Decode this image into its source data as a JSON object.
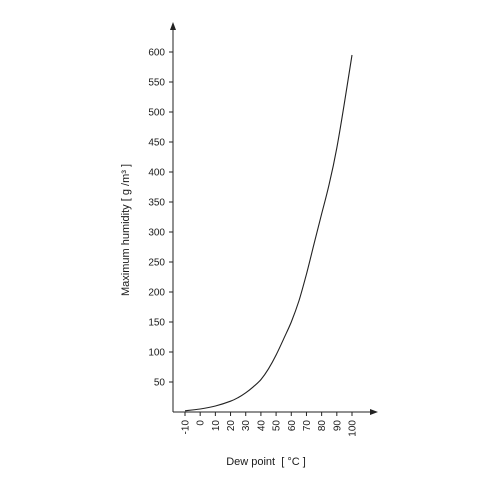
{
  "chart_data": {
    "type": "line",
    "title": "",
    "xlabel": "Dew point  [ °C ]",
    "ylabel": "Maximum humidity  [ g /m³ ]",
    "xlim": [
      -10,
      100
    ],
    "ylim": [
      0,
      600
    ],
    "x_ticks": [
      "-10",
      "0",
      "10",
      "20",
      "30",
      "40",
      "50",
      "60",
      "70",
      "80",
      "90",
      "100"
    ],
    "y_ticks": [
      "50",
      "100",
      "150",
      "200",
      "250",
      "300",
      "350",
      "400",
      "450",
      "500",
      "550",
      "600"
    ],
    "grid": false,
    "legend": "none",
    "series": [
      {
        "x": [
          -10,
          0,
          10,
          20,
          25,
          30,
          35,
          40,
          45,
          50,
          55,
          60,
          65,
          70,
          75,
          80,
          85,
          90,
          95,
          100
        ],
        "y": [
          2,
          5,
          10,
          18,
          24,
          32,
          42,
          54,
          72,
          95,
          122,
          150,
          185,
          230,
          280,
          330,
          380,
          440,
          515,
          595
        ]
      }
    ]
  }
}
